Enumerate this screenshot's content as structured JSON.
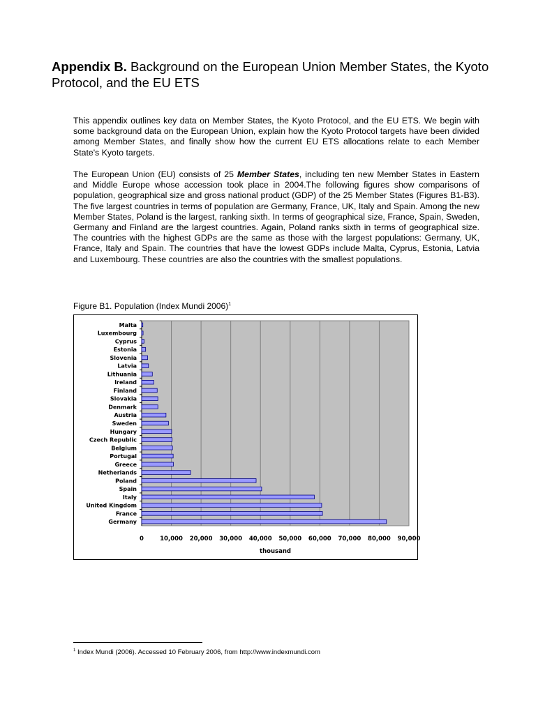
{
  "title": {
    "bold": "Appendix B.",
    "rest": " Background on the European Union Member States, the Kyoto Protocol, and the EU ETS"
  },
  "paragraphs": [
    "This appendix outlines key data on Member States, the Kyoto Protocol, and the EU ETS. We begin with some background data on the European Union, explain how the Kyoto Protocol targets have been divided among Member States, and finally show how the current EU ETS allocations relate to each Member State's Kyoto targets.",
    {
      "before": "The European Union (EU) consists of 25 ",
      "emphasis": "Member States",
      "after": ", including ten new Member States in Eastern and Middle Europe whose accession took place in 2004.The following figures show comparisons of population, geographical size and gross national product (GDP) of the 25 Member States (Figures B1-B3). The five largest countries in terms of population are Germany, France, UK, Italy and Spain. Among the new Member States, Poland is the largest, ranking sixth. In terms of geographical size, France, Spain, Sweden, Germany and Finland are the largest countries. Again, Poland ranks sixth in terms of geographical size. The countries with the highest GDPs are the same as those with the largest populations: Germany, UK, France, Italy and Spain. The countries that have the lowest GDPs include Malta, Cyprus, Estonia, Latvia and Luxembourg. These countries are also the countries with the smallest populations."
    }
  ],
  "figure_caption": "Figure B1. Population (Index Mundi 2006)",
  "figure_caption_note": "1",
  "chart_data": {
    "type": "bar",
    "orientation": "horizontal",
    "categories": [
      "Malta",
      "Luxembourg",
      "Cyprus",
      "Estonia",
      "Slovenia",
      "Latvia",
      "Lithuania",
      "Ireland",
      "Finland",
      "Slovakia",
      "Denmark",
      "Austria",
      "Sweden",
      "Hungary",
      "Czech Republic",
      "Belgium",
      "Portugal",
      "Greece",
      "Netherlands",
      "Poland",
      "Spain",
      "Italy",
      "United Kingdom",
      "France",
      "Germany"
    ],
    "values": [
      400,
      480,
      790,
      1330,
      2010,
      2290,
      3590,
      4060,
      5230,
      5440,
      5450,
      8190,
      9020,
      10080,
      10240,
      10380,
      10610,
      10690,
      16490,
      38540,
      40400,
      58130,
      60610,
      60880,
      82420
    ],
    "xlabel": "thousand",
    "xlim": [
      0,
      90000
    ],
    "xticks": [
      "0",
      "10,000",
      "20,000",
      "30,000",
      "40,000",
      "50,000",
      "60,000",
      "70,000",
      "80,000",
      "90,000"
    ],
    "grid": true,
    "colors": {
      "bar": "#9999ff",
      "bar_edge": "#000080",
      "plot_bg": "#c0c0c0",
      "grid": "#808080"
    }
  },
  "footnote": {
    "marker": "1",
    "text": " Index Mundi (2006). Accessed 10 February 2006, from http://www.indexmundi.com"
  }
}
